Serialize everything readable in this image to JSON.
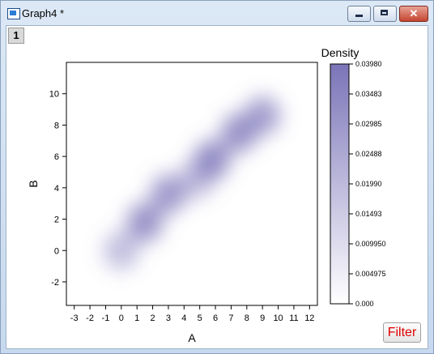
{
  "window": {
    "title": "Graph4 *"
  },
  "layer": {
    "label": "1"
  },
  "filter": {
    "label": "Filter"
  },
  "colors": {
    "density_max": "#7b74b8",
    "density_min": "#ffffff"
  },
  "chart_data": {
    "type": "heatmap",
    "title": "",
    "xlabel": "A",
    "ylabel": "B",
    "xlim": [
      -3.5,
      12.5
    ],
    "ylim": [
      -3.5,
      12
    ],
    "x_ticks": [
      "-3",
      "-2",
      "-1",
      "0",
      "1",
      "2",
      "3",
      "4",
      "5",
      "6",
      "7",
      "8",
      "9",
      "10",
      "11",
      "12"
    ],
    "y_ticks": [
      "-2",
      "0",
      "2",
      "4",
      "6",
      "8",
      "10"
    ],
    "density_peaks": [
      {
        "x": 0,
        "y": 0,
        "density": 0.02
      },
      {
        "x": 1.5,
        "y": 1.8,
        "density": 0.034
      },
      {
        "x": 3,
        "y": 3.6,
        "density": 0.032
      },
      {
        "x": 4.8,
        "y": 4.6,
        "density": 0.022
      },
      {
        "x": 5.8,
        "y": 5.8,
        "density": 0.036
      },
      {
        "x": 7.5,
        "y": 7.5,
        "density": 0.034
      },
      {
        "x": 9,
        "y": 8.6,
        "density": 0.03
      }
    ],
    "colorbar": {
      "title": "Density",
      "range": [
        0,
        0.0398
      ],
      "ticks": [
        "0.03980",
        "0.03483",
        "0.02985",
        "0.02488",
        "0.01990",
        "0.01493",
        "0.009950",
        "0.004975",
        "0.000"
      ]
    }
  }
}
